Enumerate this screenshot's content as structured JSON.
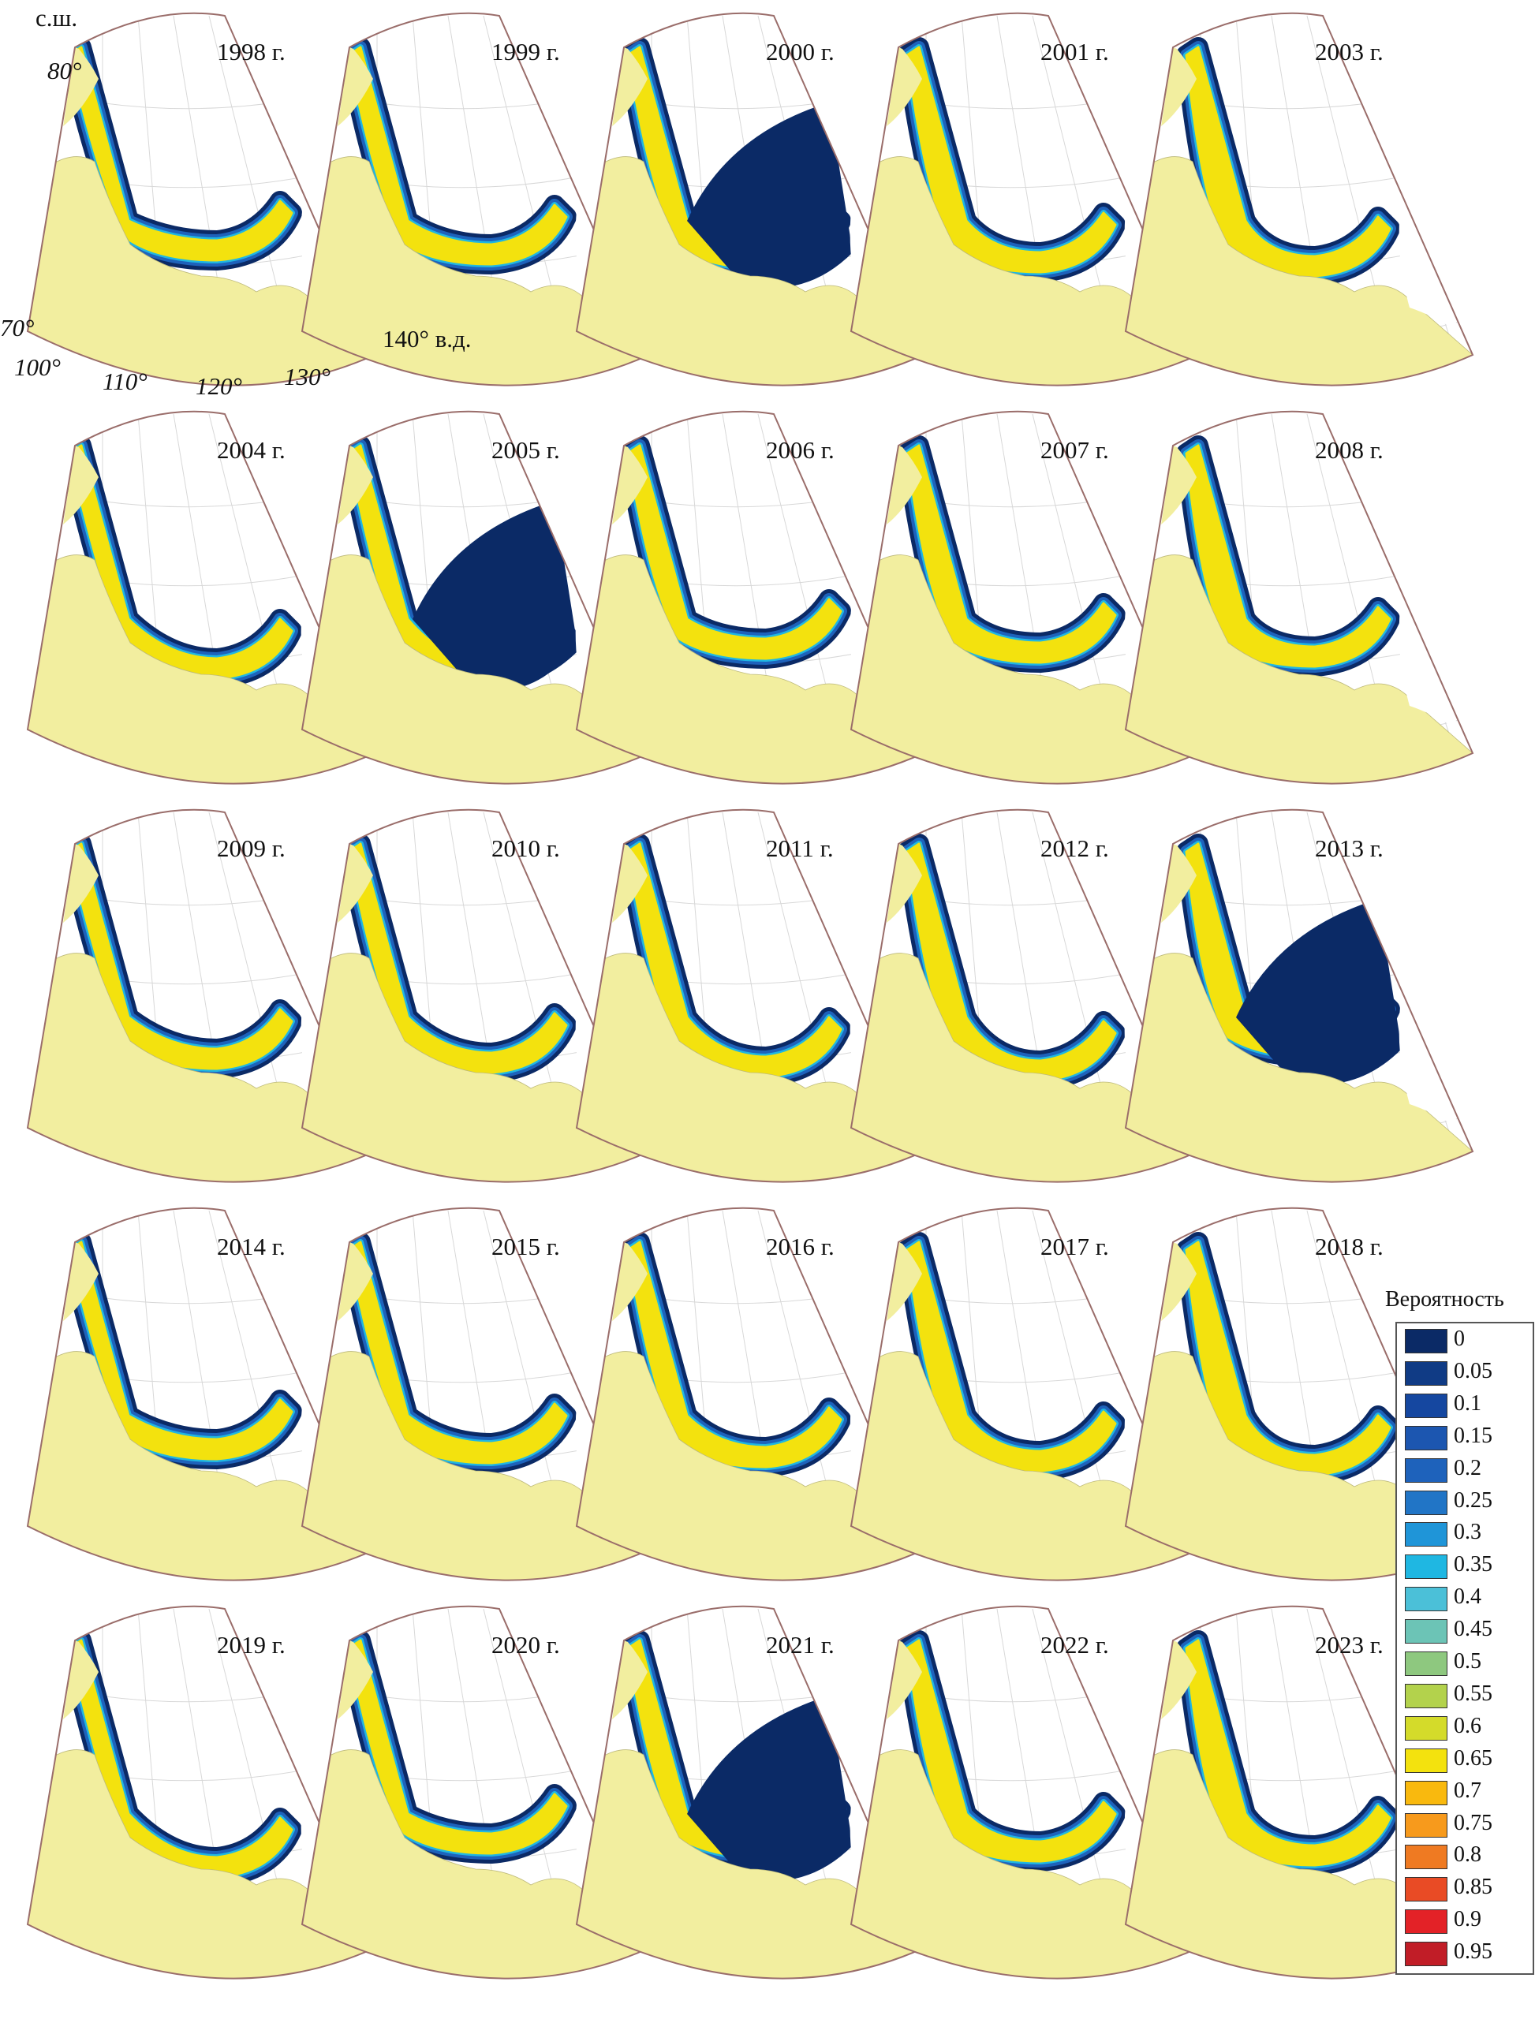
{
  "years": [
    "1998 г.",
    "1999 г.",
    "2000 г.",
    "2001 г.",
    "2003 г.",
    "2004 г.",
    "2005 г.",
    "2006 г.",
    "2007 г.",
    "2008 г.",
    "2009 г.",
    "2010 г.",
    "2011 г.",
    "2012 г.",
    "2013 г.",
    "2014 г.",
    "2015 г.",
    "2016 г.",
    "2017 г.",
    "2018 г.",
    "2019 г.",
    "2020 г.",
    "2021 г.",
    "2022 г.",
    "2023 г."
  ],
  "axis_labels": {
    "north_label": "с.ш.",
    "lat_80": "80°",
    "lat_70": "70°",
    "lon_100": "100°",
    "lon_110": "110°",
    "lon_120": "120°",
    "lon_130": "130°",
    "lon_140": "140° в.д."
  },
  "legend": {
    "title": "Вероятность",
    "entries": [
      {
        "label": "0",
        "color": "#0b2a66"
      },
      {
        "label": "0.05",
        "color": "#103b85"
      },
      {
        "label": "0.1",
        "color": "#1547a0"
      },
      {
        "label": "0.15",
        "color": "#1c56b0"
      },
      {
        "label": "0.2",
        "color": "#1e62bb"
      },
      {
        "label": "0.25",
        "color": "#2175c6"
      },
      {
        "label": "0.3",
        "color": "#1f95d8"
      },
      {
        "label": "0.35",
        "color": "#1fb7e2"
      },
      {
        "label": "0.4",
        "color": "#4bc0d8"
      },
      {
        "label": "0.45",
        "color": "#6cc4b6"
      },
      {
        "label": "0.5",
        "color": "#8ec87f"
      },
      {
        "label": "0.55",
        "color": "#b3d24c"
      },
      {
        "label": "0.6",
        "color": "#d4db2a"
      },
      {
        "label": "0.65",
        "color": "#f3e20e"
      },
      {
        "label": "0.7",
        "color": "#f9b90e"
      },
      {
        "label": "0.75",
        "color": "#f79a1c"
      },
      {
        "label": "0.8",
        "color": "#ef7a22"
      },
      {
        "label": "0.85",
        "color": "#e94b25"
      },
      {
        "label": "0.9",
        "color": "#e32227"
      },
      {
        "label": "0.95",
        "color": "#c11d27"
      }
    ]
  },
  "colors": {
    "land": "#f2ee9f",
    "frame": "#9a6d6a",
    "ice_deep": "#0b2a66",
    "ice_mid": "#1e62bb",
    "ice_edge": "#1fb7e2",
    "ice_hot": "#f3e20e",
    "ice_red": "#e32227"
  }
}
